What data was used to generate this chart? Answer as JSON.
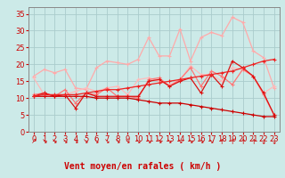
{
  "x": [
    0,
    1,
    2,
    3,
    4,
    5,
    6,
    7,
    8,
    9,
    10,
    11,
    12,
    13,
    14,
    15,
    16,
    17,
    18,
    19,
    20,
    21,
    22,
    23
  ],
  "series": [
    {
      "name": "line1_lightest",
      "color": "#ffaaaa",
      "linewidth": 0.9,
      "marker": "+",
      "markersize": 3.0,
      "values": [
        16.5,
        18.5,
        17.5,
        18.5,
        13.0,
        12.5,
        19.0,
        21.0,
        20.5,
        20.0,
        21.5,
        28.0,
        22.5,
        22.5,
        30.5,
        21.0,
        28.0,
        29.5,
        28.5,
        34.0,
        32.5,
        24.0,
        22.0,
        13.0
      ]
    },
    {
      "name": "line2_light",
      "color": "#ffbbbb",
      "linewidth": 0.9,
      "marker": "+",
      "markersize": 3.0,
      "values": [
        16.0,
        11.0,
        10.5,
        11.0,
        12.0,
        13.0,
        12.0,
        13.0,
        13.5,
        11.0,
        15.5,
        16.0,
        15.0,
        14.0,
        15.5,
        19.5,
        17.0,
        17.0,
        15.0,
        19.0,
        18.5,
        16.5,
        11.5,
        13.5
      ]
    },
    {
      "name": "line3_medium",
      "color": "#ff7777",
      "linewidth": 0.9,
      "marker": "+",
      "markersize": 3.0,
      "values": [
        11.0,
        11.5,
        10.5,
        12.5,
        8.5,
        11.5,
        11.0,
        13.0,
        10.5,
        10.5,
        10.0,
        15.5,
        16.0,
        13.5,
        15.5,
        19.0,
        13.5,
        18.0,
        16.5,
        14.0,
        18.5,
        16.5,
        11.0,
        5.0
      ]
    },
    {
      "name": "line4_dark",
      "color": "#dd1111",
      "linewidth": 0.9,
      "marker": "+",
      "markersize": 3.0,
      "values": [
        10.5,
        11.5,
        10.5,
        11.0,
        7.0,
        11.5,
        10.5,
        10.5,
        10.5,
        10.5,
        10.5,
        15.0,
        15.5,
        13.5,
        15.0,
        16.0,
        11.5,
        17.0,
        13.5,
        21.0,
        19.0,
        16.5,
        11.5,
        5.0
      ]
    },
    {
      "name": "line5_descend",
      "color": "#cc0000",
      "linewidth": 0.9,
      "marker": "+",
      "markersize": 3.0,
      "values": [
        10.5,
        10.5,
        10.5,
        10.5,
        10.5,
        10.5,
        10.0,
        10.0,
        10.0,
        10.0,
        9.5,
        9.0,
        8.5,
        8.5,
        8.5,
        8.0,
        7.5,
        7.0,
        6.5,
        6.0,
        5.5,
        5.0,
        4.5,
        4.5
      ]
    },
    {
      "name": "line6_ascend",
      "color": "#ee2222",
      "linewidth": 0.9,
      "marker": "+",
      "markersize": 3.0,
      "values": [
        10.5,
        11.0,
        11.0,
        11.0,
        11.0,
        11.5,
        12.0,
        12.5,
        12.5,
        13.0,
        13.5,
        14.0,
        14.5,
        15.0,
        15.5,
        16.0,
        16.5,
        17.0,
        17.5,
        18.0,
        19.0,
        20.0,
        21.0,
        21.5
      ]
    }
  ],
  "wind_dirs": [
    "↗",
    "↘",
    "↘",
    "↘",
    "↘",
    "↘",
    "↘",
    "↘",
    "↘",
    "↘",
    "↘",
    "↘",
    "↘",
    "↘",
    "↘",
    "↘",
    "↘",
    "↘",
    "↑",
    "↑",
    "↑",
    "↑",
    "↓",
    "↓"
  ],
  "xlabel": "Vent moyen/en rafales ( km/h )",
  "xlim": [
    -0.5,
    23.5
  ],
  "ylim": [
    0,
    37
  ],
  "yticks": [
    0,
    5,
    10,
    15,
    20,
    25,
    30,
    35
  ],
  "xticks": [
    0,
    1,
    2,
    3,
    4,
    5,
    6,
    7,
    8,
    9,
    10,
    11,
    12,
    13,
    14,
    15,
    16,
    17,
    18,
    19,
    20,
    21,
    22,
    23
  ],
  "background_color": "#cceae8",
  "grid_color": "#aacccc",
  "xlabel_color": "#cc0000",
  "tick_color": "#cc0000",
  "xlabel_fontsize": 7,
  "tick_fontsize": 6,
  "wind_dir_fontsize": 5.5
}
